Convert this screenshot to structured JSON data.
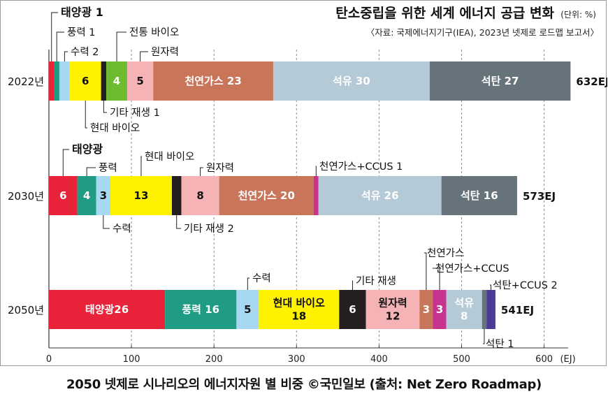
{
  "title": "탄소중립을 위한 세계 에너지 공급 변화",
  "unit": "(단위: %)",
  "source": "〈자료: 국제에너지기구(IEA), 2023년 넷제로 로드맵 보고서〉",
  "caption": "2050 넷제로 시나리오의 에너지자원 별 비중 ©국민일보 (출처: Net Zero Roadmap)",
  "colors": {
    "태양광": "#e8233a",
    "풍력": "#1f9c83",
    "수력": "#a6d8f2",
    "현대 바이오": "#fff200",
    "기타 재생": "#231f20",
    "전통 바이오": "#6dbb2e",
    "원자력": "#f6b3b5",
    "천연가스": "#c9755a",
    "천연가스+CCUS": "#c8338f",
    "석유": "#b4cad6",
    "석탄": "#67737a",
    "석탄+CCUS": "#4b3b96"
  },
  "chart_data": {
    "type": "bar",
    "orientation": "horizontal",
    "stacked": true,
    "xlabel": "(EJ)",
    "xlim": [
      0,
      650
    ],
    "xticks": [
      "0",
      "100",
      "200",
      "300",
      "400",
      "500",
      "600"
    ],
    "grid": "dashed vertical",
    "rows": [
      {
        "label": "2022년",
        "total": "632EJ",
        "segments": [
          {
            "name": "태양광",
            "value": 1,
            "label": ""
          },
          {
            "name": "풍력",
            "value": 1,
            "label": ""
          },
          {
            "name": "수력",
            "value": 2,
            "label": ""
          },
          {
            "name": "현대 바이오",
            "value": 6,
            "label": "6"
          },
          {
            "name": "기타 재생",
            "value": 1,
            "label": ""
          },
          {
            "name": "전통 바이오",
            "value": 4,
            "label": "4"
          },
          {
            "name": "원자력",
            "value": 5,
            "label": "5"
          },
          {
            "name": "천연가스",
            "value": 23,
            "label": "천연가스 23"
          },
          {
            "name": "석유",
            "value": 30,
            "label": "석유 30"
          },
          {
            "name": "석탄",
            "value": 27,
            "label": "석탄 27"
          }
        ],
        "callouts": [
          {
            "text": "태양광 1",
            "bold": true
          },
          {
            "text": "풍력 1"
          },
          {
            "text": "수력 2"
          },
          {
            "text": "전통 바이오"
          },
          {
            "text": "원자력"
          },
          {
            "text": "기타 재생 1"
          },
          {
            "text": "현대 바이오"
          }
        ]
      },
      {
        "label": "2030년",
        "total": "573EJ",
        "segments": [
          {
            "name": "태양광",
            "value": 6,
            "label": "6"
          },
          {
            "name": "풍력",
            "value": 4,
            "label": "4"
          },
          {
            "name": "수력",
            "value": 3,
            "label": "3"
          },
          {
            "name": "현대 바이오",
            "value": 13,
            "label": "13"
          },
          {
            "name": "기타 재생",
            "value": 2,
            "label": ""
          },
          {
            "name": "원자력",
            "value": 8,
            "label": "8"
          },
          {
            "name": "천연가스",
            "value": 20,
            "label": "천연가스 20"
          },
          {
            "name": "천연가스+CCUS",
            "value": 1,
            "label": ""
          },
          {
            "name": "석유",
            "value": 26,
            "label": "석유 26"
          },
          {
            "name": "석탄",
            "value": 16,
            "label": "석탄 16"
          }
        ],
        "callouts": [
          {
            "text": "태양광",
            "bold": true
          },
          {
            "text": "풍력"
          },
          {
            "text": "현대 바이오"
          },
          {
            "text": "원자력"
          },
          {
            "text": "천연가스+CCUS 1"
          },
          {
            "text": "수력"
          },
          {
            "text": "기타 재생 2"
          }
        ]
      },
      {
        "label": "2050년",
        "total": "541EJ",
        "segments": [
          {
            "name": "태양광",
            "value": 26,
            "label": "태양광26"
          },
          {
            "name": "풍력",
            "value": 16,
            "label": "풍력 16"
          },
          {
            "name": "수력",
            "value": 5,
            "label": "5"
          },
          {
            "name": "현대 바이오",
            "value": 18,
            "label": "현대 바이오|18"
          },
          {
            "name": "기타 재생",
            "value": 6,
            "label": "6"
          },
          {
            "name": "원자력",
            "value": 12,
            "label": "원자력|12"
          },
          {
            "name": "천연가스",
            "value": 3,
            "label": "3"
          },
          {
            "name": "천연가스+CCUS",
            "value": 3,
            "label": "3"
          },
          {
            "name": "석유",
            "value": 8,
            "label": "석유|8"
          },
          {
            "name": "석탄",
            "value": 1,
            "label": ""
          },
          {
            "name": "석탄+CCUS",
            "value": 2,
            "label": ""
          }
        ],
        "callouts": [
          {
            "text": "수력"
          },
          {
            "text": "기타 재생"
          },
          {
            "text": "천연가스"
          },
          {
            "text": "천연가스+CCUS"
          },
          {
            "text": "석탄+CCUS 2"
          },
          {
            "text": "석탄 1"
          }
        ]
      }
    ]
  }
}
